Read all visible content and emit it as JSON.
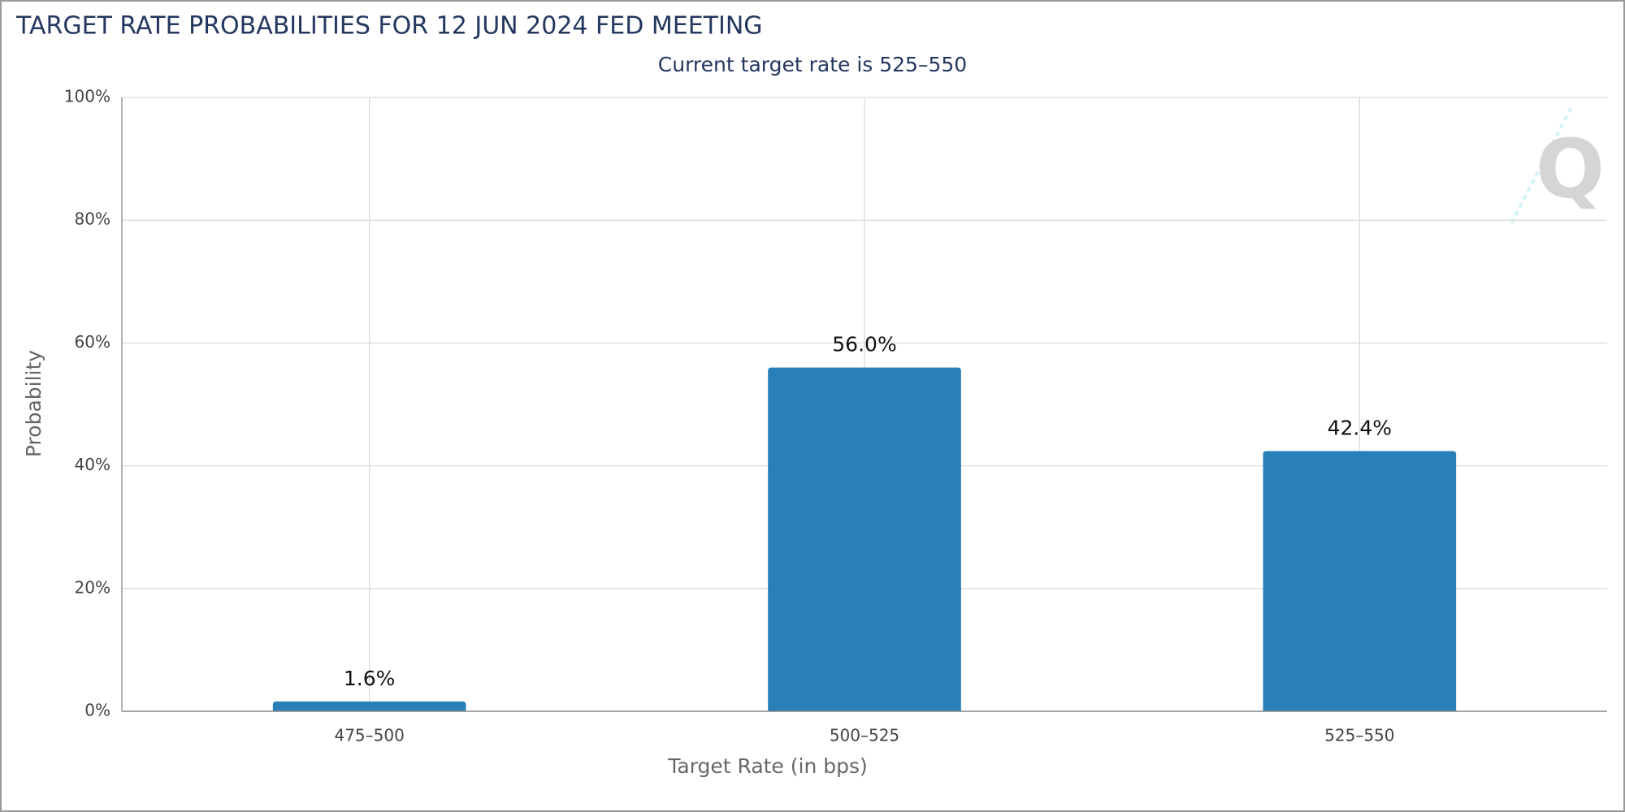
{
  "chart_data": {
    "type": "bar",
    "title": "TARGET RATE PROBABILITIES FOR 12 JUN 2024 FED MEETING",
    "subtitle": "Current target rate is 525–550",
    "x_label": "Target Rate (in bps)",
    "y_label": "Probability",
    "categories": [
      "475–500",
      "500–525",
      "525–550"
    ],
    "values": [
      1.6,
      56.0,
      42.4
    ],
    "value_labels": [
      "1.6%",
      "56.0%",
      "42.4%"
    ],
    "color": "#2980b9",
    "ylim": [
      0,
      100
    ],
    "yticks": [
      {
        "value": 0,
        "label": "0%"
      },
      {
        "value": 20,
        "label": "20%"
      },
      {
        "value": 40,
        "label": "40%"
      },
      {
        "value": 60,
        "label": "60%"
      },
      {
        "value": 80,
        "label": "80%"
      },
      {
        "value": 100,
        "label": "100%"
      }
    ],
    "grid": true
  }
}
